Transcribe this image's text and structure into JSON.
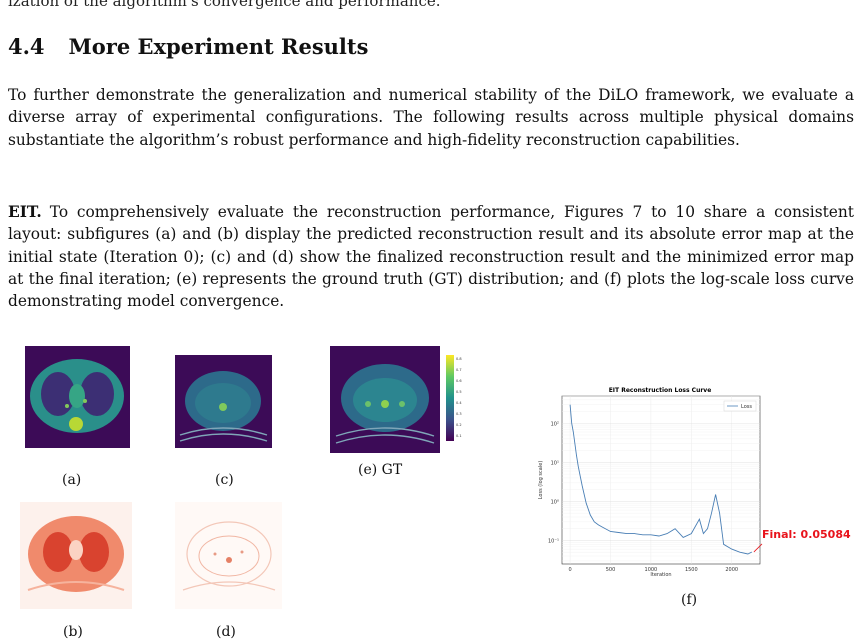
{
  "top_fragment": "ization of the algorithm's convergence and performance.",
  "section": {
    "number": "4.4",
    "title": "More Experiment Results"
  },
  "intro_paragraph": "To further demonstrate the generalization and numerical stability of the DiLO framework, we evaluate a diverse array of experimental configurations. The following results across multiple physical domains substantiate the algorithm’s robust performance and high-fidelity reconstruction capabilities.",
  "eit_paragraph": {
    "runin": "EIT.",
    "text": "To comprehensively evaluate the reconstruction performance, Figures 7 to 10 share a consistent layout: subfigures (a) and (b) display the predicted reconstruction result and its absolute error map at the initial state (Iteration 0); (c) and (d) show the finalized reconstruction result and the minimized error map at the final iteration; (e) represents the ground truth (GT) distribution; and (f) plots the log-scale loss curve demonstrating model convergence."
  },
  "captions": {
    "a": "(a)",
    "b": "(b)",
    "c": "(c)",
    "d": "(d)",
    "e": "(e) GT",
    "f": "(f)"
  },
  "colorbar_ticks": [
    "0.8",
    "0.7",
    "0.6",
    "0.5",
    "0.4",
    "0.3",
    "0.2",
    "0.1"
  ],
  "chart_data": {
    "type": "line",
    "title": "EIT Reconstruction Loss Curve",
    "xlabel": "Iteration",
    "ylabel": "Loss (log scale)",
    "y_scale": "log",
    "xlim": [
      -100,
      2350
    ],
    "ylim": [
      0.025,
      500
    ],
    "x_ticks": [
      "0",
      "500",
      "1000",
      "1500",
      "2000"
    ],
    "y_ticks": [
      "10⁻¹",
      "10⁰",
      "10¹",
      "10²"
    ],
    "grid": true,
    "legend": {
      "position": "top-right",
      "entries": [
        "Loss"
      ]
    },
    "series": [
      {
        "name": "Loss",
        "color": "#4a7fb5",
        "x": [
          0,
          20,
          40,
          60,
          80,
          100,
          120,
          150,
          200,
          250,
          300,
          350,
          400,
          500,
          600,
          700,
          800,
          900,
          1000,
          1100,
          1200,
          1300,
          1400,
          1500,
          1600,
          1650,
          1700,
          1750,
          1800,
          1850,
          1900,
          2000,
          2100,
          2200,
          2250
        ],
        "y": [
          300,
          100,
          60,
          30,
          15,
          8,
          5,
          2.5,
          0.9,
          0.45,
          0.3,
          0.25,
          0.22,
          0.17,
          0.16,
          0.15,
          0.15,
          0.14,
          0.14,
          0.13,
          0.15,
          0.2,
          0.12,
          0.15,
          0.35,
          0.15,
          0.2,
          0.5,
          1.5,
          0.5,
          0.08,
          0.06,
          0.05,
          0.045,
          0.05084
        ]
      }
    ],
    "annotation": "Final: 0.05084"
  }
}
